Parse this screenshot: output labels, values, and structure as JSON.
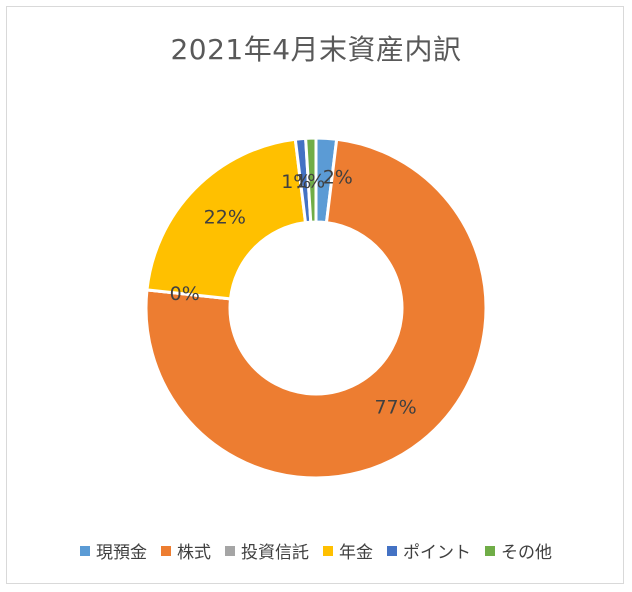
{
  "chart_data": {
    "type": "pie",
    "title": "2021年4月末資産内訳",
    "categories": [
      "現預金",
      "株式",
      "投資信託",
      "年金",
      "ポイント",
      "その他"
    ],
    "values": [
      2,
      77,
      0,
      22,
      1,
      1
    ],
    "data_labels": [
      "2%",
      "77%",
      "0%",
      "22%",
      "1%",
      "1%"
    ],
    "colors": [
      "#5b9bd5",
      "#ed7d31",
      "#a5a5a5",
      "#ffc000",
      "#4472c4",
      "#70ad47"
    ],
    "donut": true,
    "legend_position": "bottom"
  }
}
